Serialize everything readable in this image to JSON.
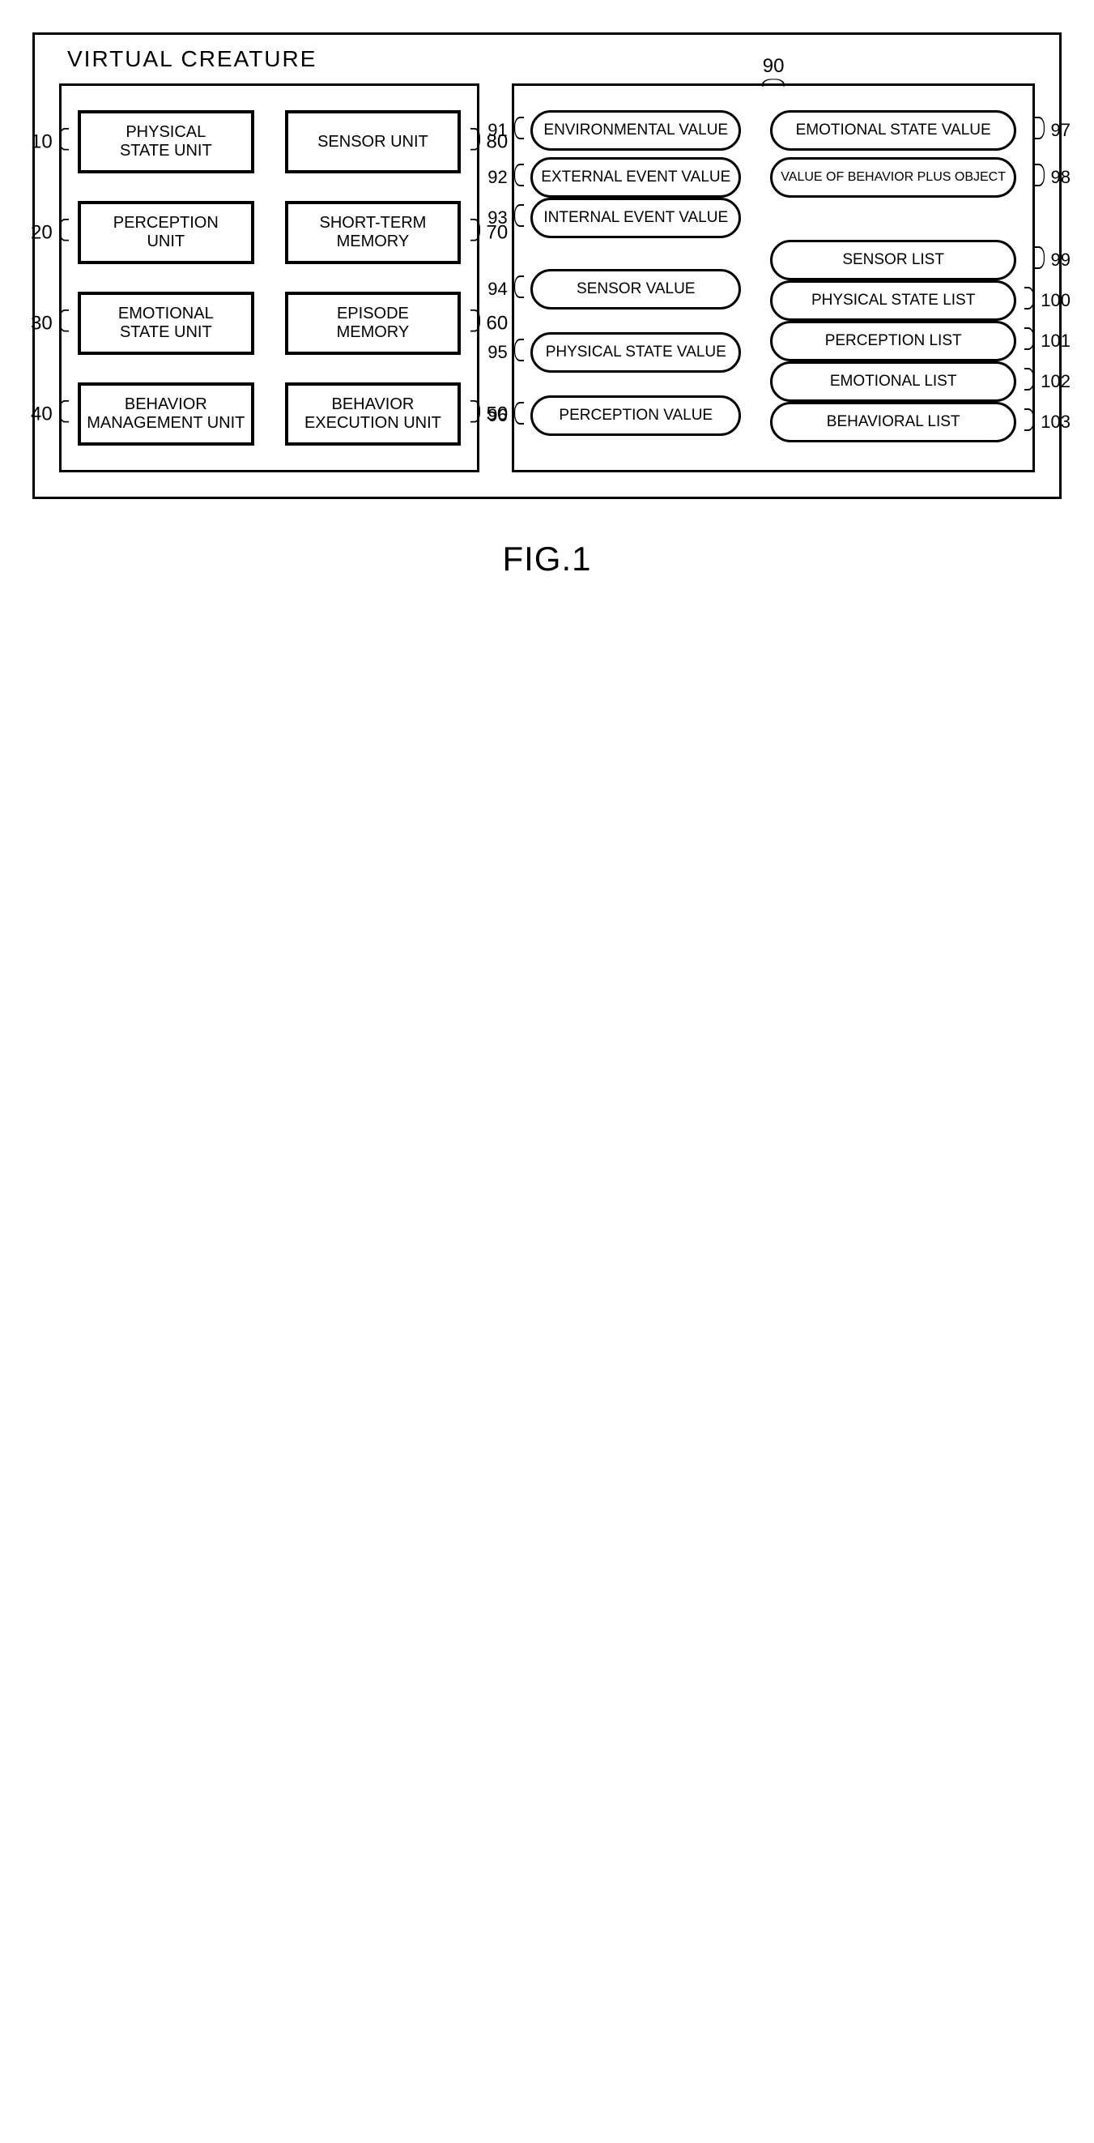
{
  "figure": {
    "title": "VIRTUAL CREATURE",
    "caption": "FIG.1",
    "left_panel": {
      "rows": [
        {
          "left": {
            "label": "PHYSICAL\nSTATE UNIT",
            "ref": "10"
          },
          "right": {
            "label": "SENSOR UNIT",
            "ref": "80"
          }
        },
        {
          "left": {
            "label": "PERCEPTION\nUNIT",
            "ref": "20"
          },
          "right": {
            "label": "SHORT-TERM\nMEMORY",
            "ref": "70"
          }
        },
        {
          "left": {
            "label": "EMOTIONAL\nSTATE UNIT",
            "ref": "30"
          },
          "right": {
            "label": "EPISODE\nMEMORY",
            "ref": "60"
          }
        },
        {
          "left": {
            "label": "BEHAVIOR\nMANAGEMENT UNIT",
            "ref": "40"
          },
          "right": {
            "label": "BEHAVIOR\nEXECUTION UNIT",
            "ref": "50"
          }
        }
      ]
    },
    "right_panel": {
      "ref": "90",
      "left_col": [
        {
          "label": "ENVIRONMENTAL VALUE",
          "ref": "91",
          "mt": 0
        },
        {
          "label": "EXTERNAL EVENT VALUE",
          "ref": "92",
          "mt": 8
        },
        {
          "label": "INTERNAL EVENT VALUE",
          "ref": "93",
          "mt": 0
        },
        {
          "label": "SENSOR VALUE",
          "ref": "94",
          "mt": 38
        },
        {
          "label": "PHYSICAL STATE VALUE",
          "ref": "95",
          "mt": 28
        },
        {
          "label": "PERCEPTION VALUE",
          "ref": "96",
          "mt": 28
        }
      ],
      "right_col": [
        {
          "label": "EMOTIONAL STATE VALUE",
          "ref": "97",
          "mt": 0
        },
        {
          "label": "VALUE OF BEHAVIOR PLUS OBJECT",
          "ref": "98",
          "mt": 8,
          "fs": 16
        },
        {
          "label": "SENSOR LIST",
          "ref": "99",
          "mt": 52
        },
        {
          "label": "PHYSICAL STATE LIST",
          "ref": "100",
          "mt": 0
        },
        {
          "label": "PERCEPTION LIST",
          "ref": "101",
          "mt": 0
        },
        {
          "label": "EMOTIONAL LIST",
          "ref": "102",
          "mt": 0
        },
        {
          "label": "BEHAVIORAL LIST",
          "ref": "103",
          "mt": 0
        }
      ]
    }
  }
}
